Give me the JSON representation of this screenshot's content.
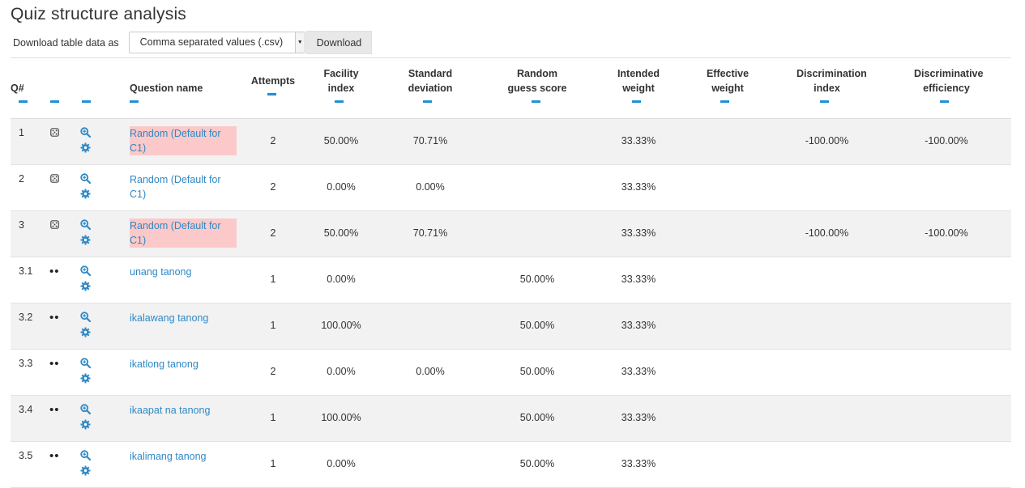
{
  "page": {
    "title": "Quiz structure analysis"
  },
  "download": {
    "label": "Download table data as",
    "format": "Comma separated values (.csv)",
    "button": "Download"
  },
  "table": {
    "headers": [
      "Q#",
      "",
      "",
      "Question name",
      "Attempts",
      "Facility index",
      "Standard deviation",
      "Random guess score",
      "Intended weight",
      "Effective weight",
      "Discrimination index",
      "Discriminative efficiency"
    ],
    "rows": [
      {
        "num": "1",
        "type_icon": "random-question-icon",
        "name": "Random (Default for C1)",
        "highlight": true,
        "attempts": "2",
        "facility": "50.00%",
        "sd": "70.71%",
        "random": "",
        "intended": "33.33%",
        "effective": "",
        "discrimination": "-100.00%",
        "efficiency": "-100.00%"
      },
      {
        "num": "2",
        "type_icon": "random-question-icon",
        "name": "Random (Default for C1)",
        "highlight": false,
        "attempts": "2",
        "facility": "0.00%",
        "sd": "0.00%",
        "random": "",
        "intended": "33.33%",
        "effective": "",
        "discrimination": "",
        "efficiency": ""
      },
      {
        "num": "3",
        "type_icon": "random-question-icon",
        "name": "Random (Default for C1)",
        "highlight": true,
        "attempts": "2",
        "facility": "50.00%",
        "sd": "70.71%",
        "random": "",
        "intended": "33.33%",
        "effective": "",
        "discrimination": "-100.00%",
        "efficiency": "-100.00%"
      },
      {
        "num": "3.1",
        "type_icon": "multichoice-icon",
        "name": "unang tanong",
        "highlight": false,
        "attempts": "1",
        "facility": "0.00%",
        "sd": "",
        "random": "50.00%",
        "intended": "33.33%",
        "effective": "",
        "discrimination": "",
        "efficiency": ""
      },
      {
        "num": "3.2",
        "type_icon": "multichoice-icon",
        "name": "ikalawang tanong",
        "highlight": false,
        "attempts": "1",
        "facility": "100.00%",
        "sd": "",
        "random": "50.00%",
        "intended": "33.33%",
        "effective": "",
        "discrimination": "",
        "efficiency": ""
      },
      {
        "num": "3.3",
        "type_icon": "multichoice-icon",
        "name": "ikatlong tanong",
        "highlight": false,
        "attempts": "2",
        "facility": "0.00%",
        "sd": "0.00%",
        "random": "50.00%",
        "intended": "33.33%",
        "effective": "",
        "discrimination": "",
        "efficiency": ""
      },
      {
        "num": "3.4",
        "type_icon": "multichoice-icon",
        "name": "ikaapat na tanong",
        "highlight": false,
        "attempts": "1",
        "facility": "100.00%",
        "sd": "",
        "random": "50.00%",
        "intended": "33.33%",
        "effective": "",
        "discrimination": "",
        "efficiency": ""
      },
      {
        "num": "3.5",
        "type_icon": "multichoice-icon",
        "name": "ikalimang tanong",
        "highlight": false,
        "attempts": "1",
        "facility": "0.00%",
        "sd": "",
        "random": "50.00%",
        "intended": "33.33%",
        "effective": "",
        "discrimination": "",
        "efficiency": ""
      }
    ]
  },
  "colors": {
    "link": "#2f89c5",
    "sort_indicator": "#1e90d6",
    "highlight": "#fbc9c9",
    "row_shade": "#f2f2f2"
  },
  "icons": {
    "preview": "zoom-icon",
    "edit": "gear-icon"
  }
}
